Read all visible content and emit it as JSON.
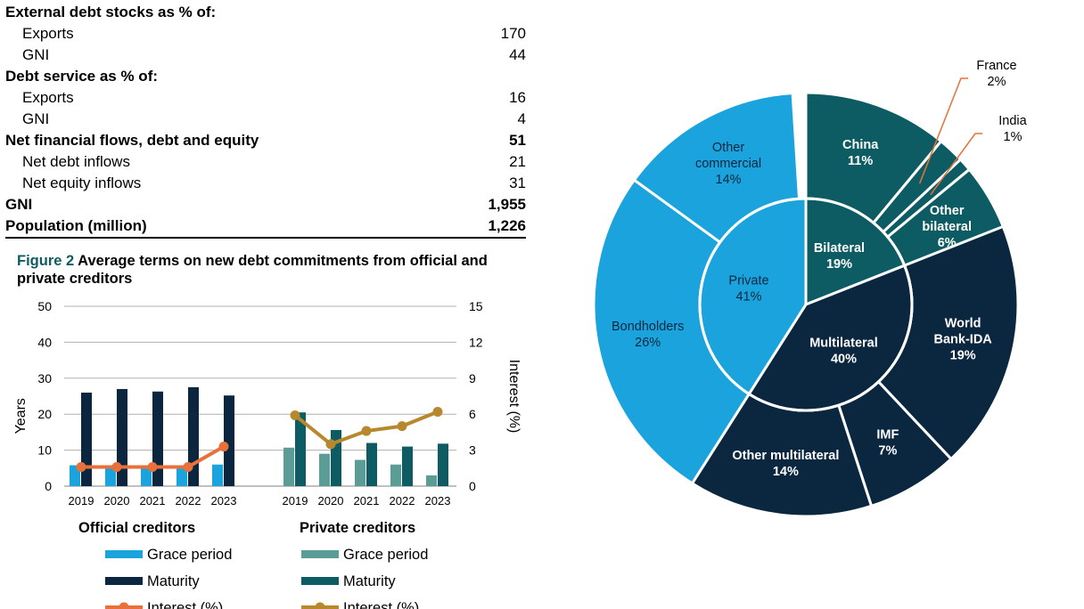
{
  "table": {
    "rows": [
      {
        "label": "External debt stocks as % of:",
        "value": "",
        "style": "hdr"
      },
      {
        "label": "Exports",
        "value": "170",
        "style": "ind"
      },
      {
        "label": "GNI",
        "value": "44",
        "style": "ind"
      },
      {
        "label": "Debt service as % of:",
        "value": "",
        "style": "hdr"
      },
      {
        "label": "Exports",
        "value": "16",
        "style": "ind"
      },
      {
        "label": "GNI",
        "value": "4",
        "style": "ind"
      },
      {
        "label": "Net financial flows, debt and equity",
        "value": "51",
        "style": "hdr"
      },
      {
        "label": "Net debt inflows",
        "value": "21",
        "style": "ind"
      },
      {
        "label": "Net equity inflows",
        "value": "31",
        "style": "ind"
      },
      {
        "label": "GNI",
        "value": "1,955",
        "style": "hdr bold"
      },
      {
        "label": "Population (million)",
        "value": "1,226",
        "style": "hdr bold last"
      }
    ]
  },
  "figure2": {
    "number": "Figure 2",
    "title": "Average terms on new debt commitments from official and private creditors"
  },
  "chart_data": [
    {
      "type": "bar",
      "title": "Average terms on new debt commitments from official and private creditors",
      "ylabel": "Years",
      "y2label": "Interest (%)",
      "ylim": [
        0,
        50
      ],
      "y_ticks": [
        0,
        10,
        20,
        30,
        40,
        50
      ],
      "y2lim": [
        0,
        15
      ],
      "y2_ticks": [
        0,
        3,
        6,
        9,
        12,
        15
      ],
      "gridlines": true,
      "groups": [
        {
          "name": "Official creditors",
          "categories": [
            "2019",
            "2020",
            "2021",
            "2022",
            "2023"
          ],
          "series": [
            {
              "name": "Grace period",
              "kind": "bar",
              "axis": "left",
              "color": "#1aa3dd",
              "values": [
                5.8,
                5.8,
                5.3,
                5.4,
                6.0
              ]
            },
            {
              "name": "Maturity",
              "kind": "bar",
              "axis": "left",
              "color": "#0b2740",
              "values": [
                26,
                27,
                26.3,
                27.5,
                25.2
              ]
            },
            {
              "name": "Interest (%)",
              "kind": "line",
              "axis": "right",
              "color": "#e8703a",
              "values": [
                1.6,
                1.6,
                1.6,
                1.6,
                3.3
              ]
            }
          ]
        },
        {
          "name": "Private creditors",
          "categories": [
            "2019",
            "2020",
            "2021",
            "2022",
            "2023"
          ],
          "series": [
            {
              "name": "Grace period",
              "kind": "bar",
              "axis": "left",
              "color": "#5c9c97",
              "values": [
                10.7,
                9,
                7.3,
                6,
                3
              ]
            },
            {
              "name": "Maturity",
              "kind": "bar",
              "axis": "left",
              "color": "#0d5c63",
              "values": [
                20.5,
                15.6,
                12,
                11,
                11.8
              ]
            },
            {
              "name": "Interest (%)",
              "kind": "line",
              "axis": "right",
              "color": "#b8882f",
              "values": [
                5.9,
                3.5,
                4.6,
                5.0,
                6.2
              ]
            }
          ]
        }
      ]
    },
    {
      "type": "pie",
      "subtype": "sunburst",
      "inner": [
        {
          "label": "Private",
          "value": 41,
          "text": "41%",
          "color": "#1aa3dd",
          "text_color": "#0b2740"
        },
        {
          "label": "Bilateral",
          "value": 19,
          "text": "19%",
          "color": "#0d5c63",
          "text_color": "#ffffff"
        },
        {
          "label": "Multilateral",
          "value": 40,
          "text": "40%",
          "color": "#0b2740",
          "text_color": "#ffffff"
        }
      ],
      "outer": [
        {
          "label": "China",
          "value": 11,
          "text": "11%",
          "parent": "Bilateral",
          "color": "#0d5c63",
          "text_color": "#ffffff"
        },
        {
          "label": "France",
          "value": 2,
          "text": "2%",
          "parent": "Bilateral",
          "color": "#0d5c63",
          "text_color": "#000000",
          "callout": true
        },
        {
          "label": "India",
          "value": 1,
          "text": "1%",
          "parent": "Bilateral",
          "color": "#0d5c63",
          "text_color": "#000000",
          "callout": true
        },
        {
          "label": "Other bilateral",
          "value": 6,
          "text": "6%",
          "parent": "Bilateral",
          "color": "#0d5c63",
          "text_color": "#ffffff"
        },
        {
          "label": "World Bank-IDA",
          "value": 19,
          "text": "19%",
          "parent": "Multilateral",
          "color": "#0b2740",
          "text_color": "#ffffff"
        },
        {
          "label": "IMF",
          "value": 7,
          "text": "7%",
          "parent": "Multilateral",
          "color": "#0b2740",
          "text_color": "#ffffff"
        },
        {
          "label": "Other multilateral",
          "value": 14,
          "text": "14%",
          "parent": "Multilateral",
          "color": "#0b2740",
          "text_color": "#ffffff"
        },
        {
          "label": "Bondholders",
          "value": 26,
          "text": "26%",
          "parent": "Private",
          "color": "#1aa3dd",
          "text_color": "#0b2740"
        },
        {
          "label": "Other commercial",
          "value": 14,
          "text": "14%",
          "parent": "Private",
          "color": "#1aa3dd",
          "text_color": "#0b2740"
        }
      ]
    }
  ],
  "colors": {
    "accent_teal": "#0d5c63",
    "navy": "#0b2740",
    "sky": "#1aa3dd"
  }
}
